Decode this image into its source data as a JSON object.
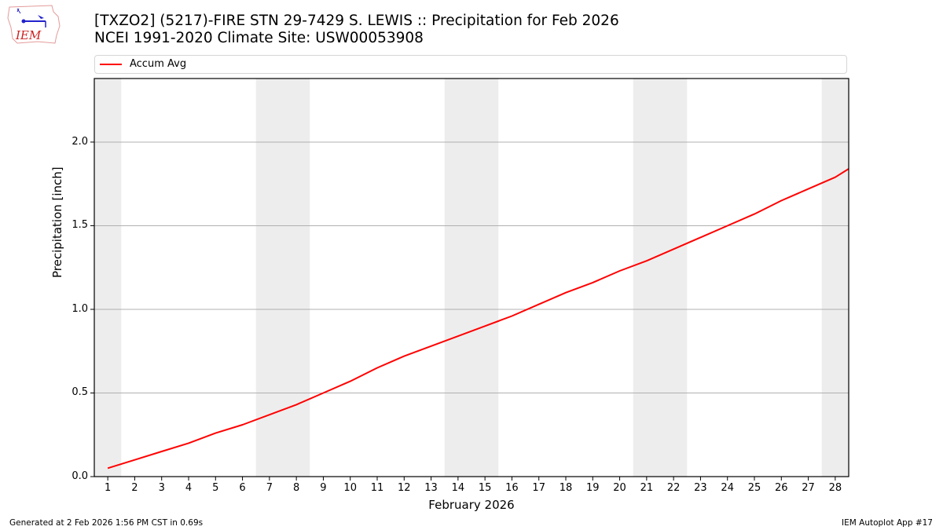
{
  "header": {
    "title_line1": "[TXZO2] (5217)-FIRE STN 29-7429 S. LEWIS :: Precipitation for Feb 2026",
    "title_line2": "NCEI 1991-2020 Climate Site: USW00053908",
    "logo_text": "IEM",
    "logo_icon": "iowa-state-outline-weather-icon"
  },
  "legend": {
    "entries": [
      {
        "label": "Accum Avg",
        "color": "#ff0000"
      }
    ]
  },
  "footer": {
    "generated": "Generated at 2 Feb 2026 1:56 PM CST in 0.69s",
    "app": "IEM Autoplot App #17"
  },
  "colors": {
    "line": "#ff0000",
    "weekend_band": "#ededed",
    "grid": "#b0b0b0",
    "axis": "#000000"
  },
  "chart_data": {
    "type": "line",
    "title": "[TXZO2] (5217)-FIRE STN 29-7429 S. LEWIS :: Precipitation for Feb 2026",
    "subtitle": "NCEI 1991-2020 Climate Site: USW00053908",
    "xlabel": "February 2026",
    "ylabel": "Precipitation [inch]",
    "x": [
      1,
      2,
      3,
      4,
      5,
      6,
      7,
      8,
      9,
      10,
      11,
      12,
      13,
      14,
      15,
      16,
      17,
      18,
      19,
      20,
      21,
      22,
      23,
      24,
      25,
      26,
      27,
      28,
      28.5
    ],
    "series": [
      {
        "name": "Accum Avg",
        "color": "#ff0000",
        "values": [
          0.05,
          0.1,
          0.15,
          0.2,
          0.26,
          0.31,
          0.37,
          0.43,
          0.5,
          0.57,
          0.65,
          0.72,
          0.78,
          0.84,
          0.9,
          0.96,
          1.03,
          1.1,
          1.16,
          1.23,
          1.29,
          1.36,
          1.43,
          1.5,
          1.57,
          1.65,
          1.72,
          1.79,
          1.84
        ]
      }
    ],
    "xticks": [
      "1",
      "2",
      "3",
      "4",
      "5",
      "6",
      "7",
      "8",
      "9",
      "10",
      "11",
      "12",
      "13",
      "14",
      "15",
      "16",
      "17",
      "18",
      "19",
      "20",
      "21",
      "22",
      "23",
      "24",
      "25",
      "26",
      "27",
      "28"
    ],
    "yticks": [
      "0.0",
      "0.5",
      "1.0",
      "1.5",
      "2.0"
    ],
    "xlim": [
      0.5,
      28.5
    ],
    "ylim": [
      0,
      2.38
    ],
    "grid": "y-axis horizontal lines",
    "weekend_bands": [
      [
        0.5,
        1.5
      ],
      [
        6.5,
        8.5
      ],
      [
        13.5,
        15.5
      ],
      [
        20.5,
        22.5
      ],
      [
        27.5,
        28.5
      ]
    ],
    "legend_position": "top, above plot"
  }
}
